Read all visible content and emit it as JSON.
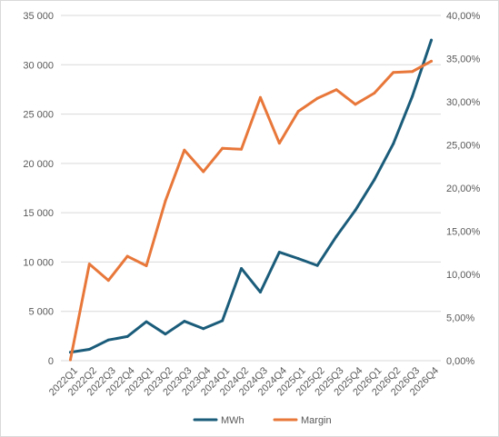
{
  "chart_data": {
    "type": "line",
    "title": "",
    "xlabel": "",
    "ylabel": "",
    "categories": [
      "2022Q1",
      "2022Q2",
      "2022Q3",
      "2022Q4",
      "2023Q1",
      "2023Q2",
      "2023Q3",
      "2023Q4",
      "2024Q1",
      "2024Q2",
      "2024Q3",
      "2024Q4",
      "2025Q1",
      "2025Q2",
      "2025Q3",
      "2025Q4",
      "2026Q1",
      "2026Q2",
      "2026Q3",
      "2026Q4"
    ],
    "series": [
      {
        "name": "MWh",
        "axis": "left",
        "color": "#1a5c7a",
        "values": [
          850,
          1150,
          2100,
          2450,
          3950,
          2700,
          4000,
          3250,
          4050,
          9350,
          6950,
          11000,
          10350,
          9650,
          12600,
          15250,
          18350,
          22000,
          26800,
          32500
        ]
      },
      {
        "name": "Margin",
        "axis": "right",
        "color": "#e8773a",
        "values": [
          0.1,
          11.2,
          9.3,
          12.1,
          11.0,
          18.5,
          24.4,
          21.9,
          24.6,
          24.5,
          30.5,
          25.2,
          28.9,
          30.4,
          31.4,
          29.7,
          31.0,
          33.4,
          33.5,
          34.7
        ]
      }
    ],
    "y_left": {
      "ylim": [
        0,
        35000
      ],
      "ticks": [
        0,
        5000,
        10000,
        15000,
        20000,
        25000,
        30000,
        35000
      ],
      "tick_labels": [
        "0",
        "5 000",
        "10 000",
        "15 000",
        "20 000",
        "25 000",
        "30 000",
        "35 000"
      ]
    },
    "y_right": {
      "ylim": [
        0,
        40
      ],
      "unit": "%",
      "tick_labels": [
        "0,00%",
        "5,00%",
        "10,00%",
        "15,00%",
        "20,00%",
        "25,00%",
        "30,00%",
        "35,00%",
        "40,00%"
      ]
    },
    "grid": true,
    "legend_position": "bottom",
    "colors": {
      "grid": "#d9d9d9",
      "text": "#595959"
    }
  }
}
